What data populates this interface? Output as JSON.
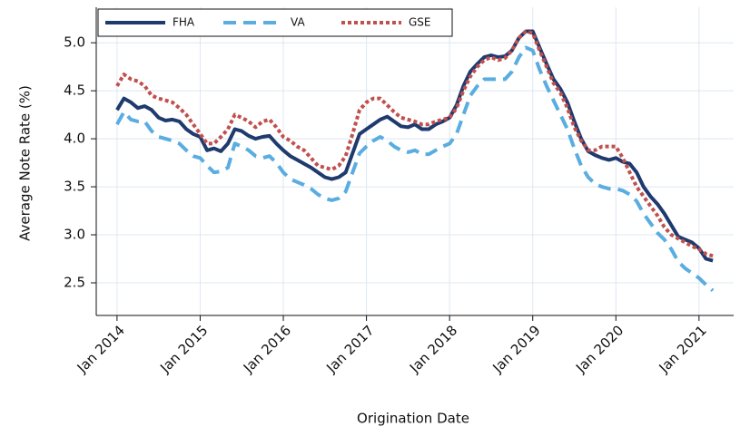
{
  "chart_data": {
    "type": "line",
    "x_label": "Origination Date",
    "y_label": "Average Note Rate (%)",
    "x": [
      "2014-01",
      "2014-02",
      "2014-03",
      "2014-04",
      "2014-05",
      "2014-06",
      "2014-07",
      "2014-08",
      "2014-09",
      "2014-10",
      "2014-11",
      "2014-12",
      "2015-01",
      "2015-02",
      "2015-03",
      "2015-04",
      "2015-05",
      "2015-06",
      "2015-07",
      "2015-08",
      "2015-09",
      "2015-10",
      "2015-11",
      "2015-12",
      "2016-01",
      "2016-02",
      "2016-03",
      "2016-04",
      "2016-05",
      "2016-06",
      "2016-07",
      "2016-08",
      "2016-09",
      "2016-10",
      "2016-11",
      "2016-12",
      "2017-01",
      "2017-02",
      "2017-03",
      "2017-04",
      "2017-05",
      "2017-06",
      "2017-07",
      "2017-08",
      "2017-09",
      "2017-10",
      "2017-11",
      "2017-12",
      "2018-01",
      "2018-02",
      "2018-03",
      "2018-04",
      "2018-05",
      "2018-06",
      "2018-07",
      "2018-08",
      "2018-09",
      "2018-10",
      "2018-11",
      "2018-12",
      "2019-01",
      "2019-02",
      "2019-03",
      "2019-04",
      "2019-05",
      "2019-06",
      "2019-07",
      "2019-08",
      "2019-09",
      "2019-10",
      "2019-11",
      "2019-12",
      "2020-01",
      "2020-02",
      "2020-03",
      "2020-04",
      "2020-05",
      "2020-06",
      "2020-07",
      "2020-08",
      "2020-09",
      "2020-10",
      "2020-11",
      "2020-12",
      "2021-01",
      "2021-02",
      "2021-03"
    ],
    "series": [
      {
        "name": "FHA",
        "color": "#1f3a6e",
        "dash": "solid",
        "values": [
          4.3,
          4.42,
          4.38,
          4.32,
          4.34,
          4.3,
          4.22,
          4.19,
          4.2,
          4.18,
          4.1,
          4.05,
          4.02,
          3.88,
          3.9,
          3.87,
          3.95,
          4.1,
          4.08,
          4.03,
          4.0,
          4.02,
          4.03,
          3.95,
          3.88,
          3.82,
          3.78,
          3.74,
          3.7,
          3.65,
          3.6,
          3.58,
          3.6,
          3.65,
          3.85,
          4.05,
          4.1,
          4.15,
          4.2,
          4.23,
          4.18,
          4.13,
          4.12,
          4.15,
          4.1,
          4.1,
          4.15,
          4.18,
          4.22,
          4.35,
          4.55,
          4.7,
          4.78,
          4.85,
          4.87,
          4.85,
          4.86,
          4.92,
          5.05,
          5.12,
          5.12,
          4.95,
          4.78,
          4.62,
          4.52,
          4.38,
          4.18,
          4.0,
          3.87,
          3.83,
          3.8,
          3.78,
          3.8,
          3.76,
          3.74,
          3.65,
          3.5,
          3.4,
          3.32,
          3.22,
          3.1,
          2.98,
          2.95,
          2.92,
          2.86,
          2.75,
          2.73
        ]
      },
      {
        "name": "VA",
        "color": "#5aade0",
        "dash": "dashed",
        "values": [
          4.15,
          4.28,
          4.2,
          4.18,
          4.18,
          4.08,
          4.02,
          4.0,
          3.98,
          3.95,
          3.88,
          3.82,
          3.8,
          3.72,
          3.65,
          3.66,
          3.7,
          3.95,
          3.92,
          3.88,
          3.82,
          3.8,
          3.82,
          3.75,
          3.65,
          3.58,
          3.55,
          3.52,
          3.48,
          3.42,
          3.38,
          3.36,
          3.38,
          3.45,
          3.65,
          3.85,
          3.92,
          3.98,
          4.02,
          3.98,
          3.92,
          3.88,
          3.86,
          3.88,
          3.84,
          3.84,
          3.88,
          3.92,
          3.95,
          4.05,
          4.25,
          4.45,
          4.55,
          4.62,
          4.62,
          4.62,
          4.62,
          4.7,
          4.85,
          4.95,
          4.92,
          4.72,
          4.55,
          4.4,
          4.25,
          4.1,
          3.9,
          3.72,
          3.6,
          3.53,
          3.5,
          3.48,
          3.48,
          3.46,
          3.42,
          3.35,
          3.22,
          3.12,
          3.02,
          2.95,
          2.85,
          2.72,
          2.65,
          2.6,
          2.55,
          2.48,
          2.42
        ]
      },
      {
        "name": "GSE",
        "color": "#c0504d",
        "dash": "dotted",
        "values": [
          4.55,
          4.67,
          4.62,
          4.6,
          4.55,
          4.45,
          4.42,
          4.4,
          4.38,
          4.32,
          4.25,
          4.15,
          4.05,
          3.95,
          3.95,
          4.02,
          4.1,
          4.25,
          4.22,
          4.18,
          4.12,
          4.18,
          4.2,
          4.12,
          4.02,
          3.98,
          3.92,
          3.88,
          3.8,
          3.72,
          3.7,
          3.68,
          3.72,
          3.82,
          4.05,
          4.3,
          4.38,
          4.42,
          4.42,
          4.35,
          4.28,
          4.22,
          4.2,
          4.18,
          4.15,
          4.15,
          4.18,
          4.2,
          4.22,
          4.32,
          4.5,
          4.65,
          4.75,
          4.82,
          4.85,
          4.82,
          4.84,
          4.92,
          5.05,
          5.12,
          5.1,
          4.92,
          4.75,
          4.58,
          4.48,
          4.32,
          4.12,
          3.98,
          3.88,
          3.88,
          3.92,
          3.92,
          3.92,
          3.8,
          3.65,
          3.5,
          3.4,
          3.3,
          3.2,
          3.08,
          3.0,
          2.96,
          2.92,
          2.88,
          2.85,
          2.8,
          2.78
        ]
      }
    ],
    "xlim": [
      "2013-10",
      "2021-06"
    ],
    "xticks": [
      {
        "value": "2014-01",
        "label": "Jan 2014"
      },
      {
        "value": "2015-01",
        "label": "Jan 2015"
      },
      {
        "value": "2016-01",
        "label": "Jan 2016"
      },
      {
        "value": "2017-01",
        "label": "Jan 2017"
      },
      {
        "value": "2018-01",
        "label": "Jan 2018"
      },
      {
        "value": "2019-01",
        "label": "Jan 2019"
      },
      {
        "value": "2020-01",
        "label": "Jan 2020"
      },
      {
        "value": "2021-01",
        "label": "Jan 2021"
      }
    ],
    "ylim": [
      2.16,
      5.37
    ],
    "yticks": [
      2.5,
      {
        "value": 3,
        "label": "3.0"
      },
      3.5,
      {
        "value": 4,
        "label": "4.0"
      },
      4.5,
      {
        "value": 5,
        "label": "5.0"
      }
    ],
    "grid": true,
    "legend": "top-left"
  }
}
